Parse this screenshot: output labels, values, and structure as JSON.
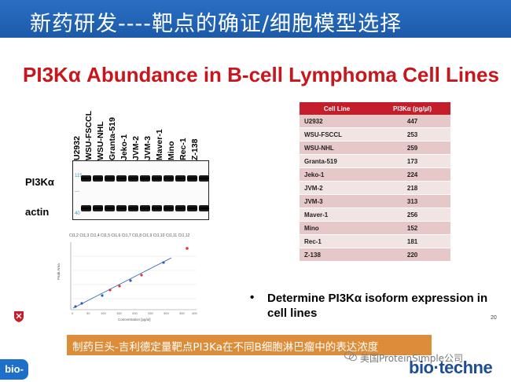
{
  "header": {
    "title": "新药研发----靶点的确证/细胞模型选择",
    "background": "#1c5aa8"
  },
  "slide": {
    "title": "PI3Kα Abundance in B-cell Lymphoma Cell Lines",
    "title_color": "#c8161d",
    "page_number": "20",
    "bullet_symbol": "•",
    "bullet": "Determine PI3Kα isoform expression in cell lines"
  },
  "blot": {
    "lanes": [
      "U2932",
      "WSU-FSCCL",
      "WSU-NHL",
      "Granta-519",
      "Jeko-1",
      "JVM-2",
      "JVM-3",
      "Maver-1",
      "Mino",
      "Rec-1",
      "Z-138"
    ],
    "row_labels": {
      "pi3k": "PI3Kα",
      "actin": "actin"
    },
    "markers": {
      "top": "115",
      "mid": "—",
      "bottom": "40"
    }
  },
  "standard_curve": {
    "legend": "Ct1,2 Ct1,3 Ct1,4 Ct1,5 Ct1,6 Ct1,7 Ct1,8 Ct1,9 Ct1,10 Ct1,11 Ct1,12"
  },
  "table": {
    "headers": [
      "Cell Line",
      "PI3Kα (pg/µl)"
    ],
    "rows": [
      [
        "U2932",
        "447"
      ],
      [
        "WSU-FSCCL",
        "253"
      ],
      [
        "WSU-NHL",
        "259"
      ],
      [
        "Granta-519",
        "173"
      ],
      [
        "Jeko-1",
        "224"
      ],
      [
        "JVM-2",
        "218"
      ],
      [
        "JVM-3",
        "313"
      ],
      [
        "Maver-1",
        "256"
      ],
      [
        "Mino",
        "152"
      ],
      [
        "Rec-1",
        "181"
      ],
      [
        "Z-138",
        "220"
      ]
    ],
    "header_color": "#c41e2a"
  },
  "caption": {
    "text": "制药巨头-吉利德定量靶点PI3Ka在不同B细胞淋巴瘤中的表达浓度",
    "background": "#dd8d3a"
  },
  "footer": {
    "badge": "bio-",
    "watermark": "美国ProteinSimple公司",
    "brand": "bio·techne"
  }
}
